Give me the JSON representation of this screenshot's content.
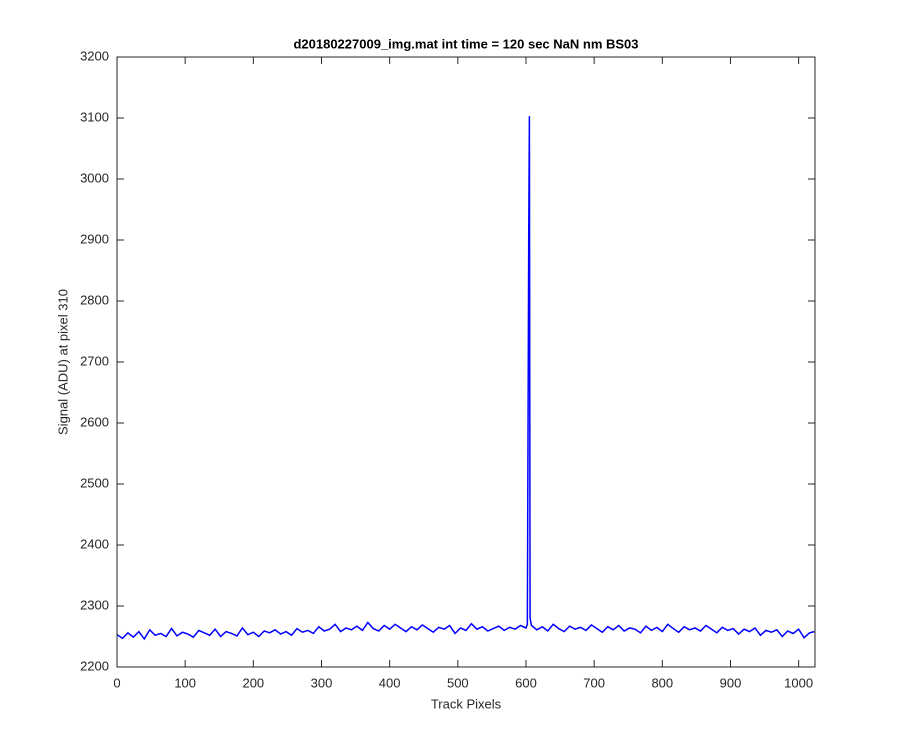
{
  "chart_data": {
    "type": "line",
    "title": "d20180227009_img.mat int time = 120 sec  NaN nm BS03",
    "x_label": "Track Pixels",
    "y_label": "Signal (ADU) at pixel 310",
    "color": "#0000ff",
    "x": [
      0,
      8,
      16,
      24,
      32,
      40,
      48,
      56,
      64,
      72,
      80,
      88,
      96,
      104,
      112,
      120,
      128,
      136,
      144,
      152,
      160,
      168,
      176,
      184,
      192,
      200,
      208,
      216,
      224,
      232,
      240,
      248,
      256,
      264,
      272,
      280,
      288,
      296,
      304,
      312,
      320,
      328,
      336,
      344,
      352,
      360,
      368,
      376,
      384,
      392,
      400,
      408,
      416,
      424,
      432,
      440,
      448,
      456,
      464,
      472,
      480,
      488,
      496,
      504,
      512,
      520,
      528,
      536,
      544,
      552,
      560,
      568,
      576,
      584,
      592,
      600,
      602,
      604,
      605,
      606,
      608,
      616,
      624,
      632,
      640,
      648,
      656,
      664,
      672,
      680,
      688,
      696,
      704,
      712,
      720,
      728,
      736,
      744,
      752,
      760,
      768,
      776,
      784,
      792,
      800,
      808,
      816,
      824,
      832,
      840,
      848,
      856,
      864,
      872,
      880,
      888,
      896,
      904,
      912,
      920,
      928,
      936,
      944,
      952,
      960,
      968,
      976,
      984,
      992,
      1000,
      1008,
      1016,
      1023
    ],
    "values": [
      2253,
      2247,
      2256,
      2249,
      2258,
      2246,
      2261,
      2252,
      2255,
      2250,
      2263,
      2251,
      2257,
      2254,
      2249,
      2260,
      2256,
      2252,
      2262,
      2250,
      2258,
      2255,
      2251,
      2264,
      2253,
      2257,
      2250,
      2259,
      2256,
      2261,
      2254,
      2258,
      2252,
      2263,
      2257,
      2260,
      2255,
      2266,
      2259,
      2262,
      2270,
      2258,
      2264,
      2261,
      2267,
      2260,
      2273,
      2263,
      2259,
      2268,
      2262,
      2270,
      2264,
      2258,
      2266,
      2261,
      2269,
      2263,
      2257,
      2265,
      2262,
      2268,
      2255,
      2264,
      2260,
      2271,
      2262,
      2266,
      2259,
      2263,
      2267,
      2260,
      2265,
      2262,
      2268,
      2264,
      2270,
      2900,
      3103,
      2280,
      2268,
      2261,
      2266,
      2259,
      2270,
      2263,
      2258,
      2267,
      2262,
      2265,
      2260,
      2269,
      2263,
      2257,
      2266,
      2261,
      2268,
      2259,
      2264,
      2262,
      2256,
      2267,
      2260,
      2265,
      2258,
      2270,
      2263,
      2257,
      2266,
      2261,
      2264,
      2259,
      2268,
      2262,
      2256,
      2265,
      2260,
      2263,
      2254,
      2262,
      2258,
      2264,
      2252,
      2260,
      2257,
      2261,
      2250,
      2259,
      2255,
      2262,
      2248,
      2256,
      2258
    ],
    "xlim": [
      0,
      1024
    ],
    "xticks": [
      0,
      100,
      200,
      300,
      400,
      500,
      600,
      700,
      800,
      900,
      1000
    ],
    "ylim": [
      2200,
      3200
    ],
    "yticks": [
      2200,
      2300,
      2400,
      2500,
      2600,
      2700,
      2800,
      2900,
      3000,
      3100,
      3200
    ],
    "grid": false
  }
}
